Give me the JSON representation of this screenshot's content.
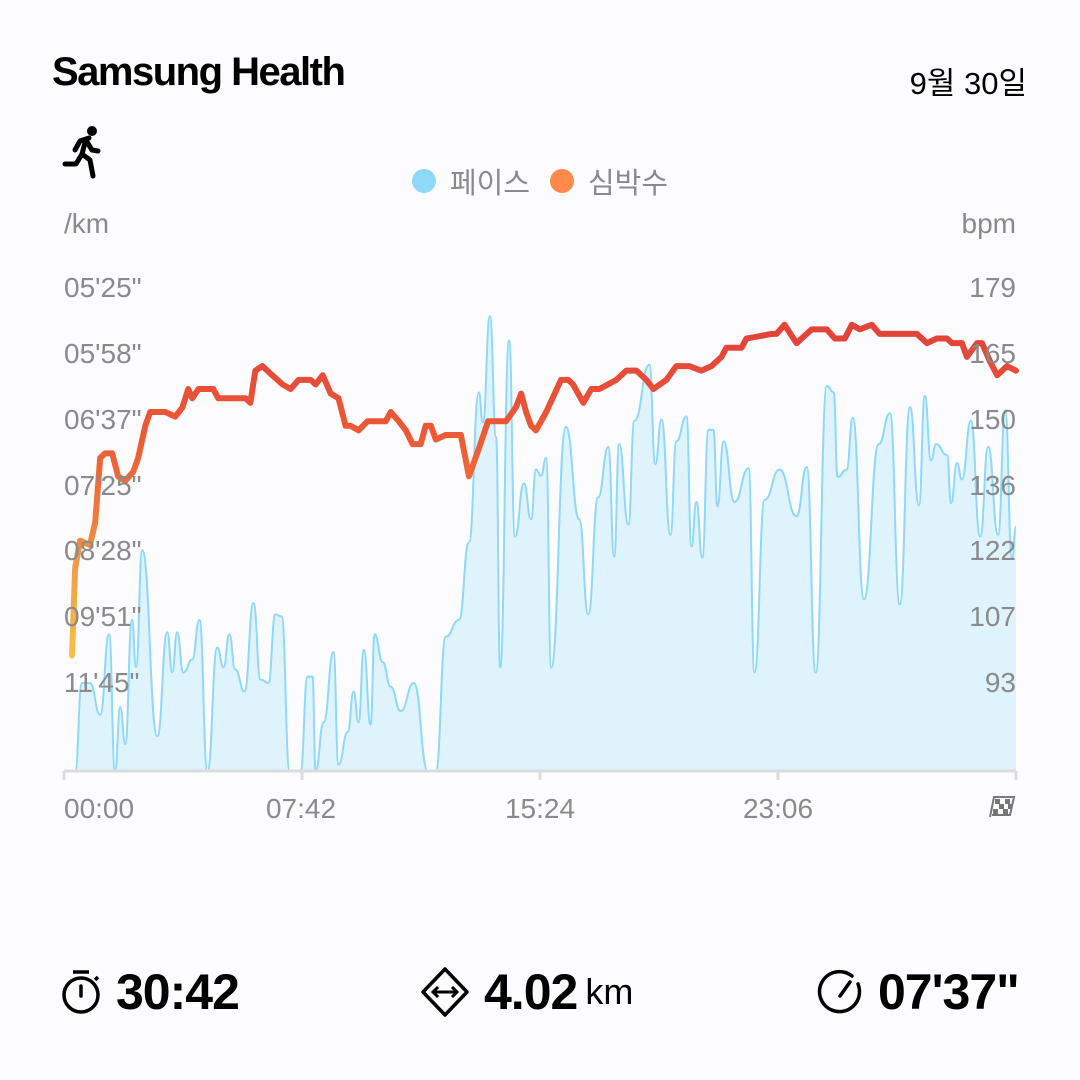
{
  "header": {
    "app_title": "Samsung Health",
    "date": "9월 30일",
    "activity_icon": "running-icon"
  },
  "legend": [
    {
      "label": "페이스",
      "color": "#8fd8f8"
    },
    {
      "label": "심박수",
      "color": "#ff8a4a"
    }
  ],
  "chart_data": {
    "type": "area+line",
    "left_axis": {
      "label": "/km",
      "ticks": [
        "05'25\"",
        "05'58\"",
        "06'37\"",
        "07'25\"",
        "08'28\"",
        "09'51\"",
        "11'45\""
      ],
      "scale": "reciprocal (speed-linear)"
    },
    "right_axis": {
      "label": "bpm",
      "ticks": [
        179,
        165,
        150,
        136,
        122,
        107,
        93
      ],
      "ylim": [
        93,
        179
      ]
    },
    "x_axis": {
      "ticks": [
        "00:00",
        "07:42",
        "15:24",
        "23:06"
      ],
      "end_icon": "checkered-flag-icon",
      "xlim_minutes": [
        0,
        30.8
      ]
    },
    "grid": false,
    "legend_position": "top-center",
    "series": [
      {
        "name": "페이스",
        "kind": "area",
        "color": "#8fd8f8",
        "fill": "#dff3fd",
        "unit": "sec/km",
        "points": [
          [
            0.36,
            960
          ],
          [
            0.58,
            705
          ],
          [
            0.84,
            705
          ],
          [
            1.17,
            778
          ],
          [
            1.46,
            616
          ],
          [
            1.65,
            960
          ],
          [
            1.82,
            759
          ],
          [
            1.98,
            861
          ],
          [
            2.2,
            594
          ],
          [
            2.33,
            673
          ],
          [
            2.53,
            506
          ],
          [
            3.02,
            837
          ],
          [
            3.34,
            613
          ],
          [
            3.5,
            684
          ],
          [
            3.66,
            613
          ],
          [
            3.86,
            684
          ],
          [
            4.15,
            659
          ],
          [
            4.38,
            594
          ],
          [
            4.64,
            960
          ],
          [
            4.96,
            638
          ],
          [
            5.16,
            674
          ],
          [
            5.35,
            616
          ],
          [
            5.54,
            678
          ],
          [
            5.84,
            723
          ],
          [
            6.13,
            570
          ],
          [
            6.36,
            698
          ],
          [
            6.61,
            705
          ],
          [
            6.84,
            586
          ],
          [
            7.04,
            589
          ],
          [
            7.3,
            960
          ],
          [
            7.65,
            960
          ],
          [
            7.88,
            692
          ],
          [
            8.04,
            692
          ],
          [
            8.14,
            960
          ],
          [
            8.4,
            798
          ],
          [
            8.72,
            646
          ],
          [
            8.88,
            930
          ],
          [
            9.18,
            824
          ],
          [
            9.37,
            723
          ],
          [
            9.53,
            798
          ],
          [
            9.7,
            642
          ],
          [
            9.92,
            804
          ],
          [
            10.05,
            616
          ],
          [
            10.31,
            664
          ],
          [
            10.57,
            713
          ],
          [
            10.89,
            769
          ],
          [
            11.32,
            705
          ],
          [
            11.77,
            960
          ],
          [
            12.03,
            960
          ],
          [
            12.35,
            620
          ],
          [
            12.78,
            594
          ],
          [
            13.1,
            498
          ],
          [
            13.42,
            379
          ],
          [
            13.55,
            398
          ],
          [
            13.78,
            338
          ],
          [
            13.98,
            408
          ],
          [
            14.11,
            674
          ],
          [
            14.4,
            350
          ],
          [
            14.59,
            492
          ],
          [
            14.88,
            443
          ],
          [
            15.11,
            475
          ],
          [
            15.27,
            432
          ],
          [
            15.43,
            437
          ],
          [
            15.6,
            423
          ],
          [
            15.76,
            674
          ],
          [
            16.24,
            401
          ],
          [
            16.67,
            475
          ],
          [
            16.96,
            586
          ],
          [
            17.28,
            455
          ],
          [
            17.61,
            415
          ],
          [
            17.8,
            513
          ],
          [
            17.96,
            413
          ],
          [
            18.26,
            480
          ],
          [
            18.45,
            397
          ],
          [
            18.94,
            363
          ],
          [
            19.13,
            428
          ],
          [
            19.33,
            396
          ],
          [
            19.62,
            490
          ],
          [
            19.81,
            411
          ],
          [
            20.14,
            394
          ],
          [
            20.3,
            502
          ],
          [
            20.46,
            459
          ],
          [
            20.65,
            514
          ],
          [
            20.85,
            403
          ],
          [
            21.01,
            403
          ],
          [
            21.14,
            463
          ],
          [
            21.34,
            411
          ],
          [
            21.69,
            459
          ],
          [
            22.15,
            431
          ],
          [
            22.34,
            684
          ],
          [
            22.67,
            457
          ],
          [
            23.15,
            432
          ],
          [
            23.7,
            472
          ],
          [
            24.03,
            430
          ],
          [
            24.32,
            684
          ],
          [
            24.68,
            375
          ],
          [
            24.9,
            379
          ],
          [
            25.03,
            438
          ],
          [
            25.32,
            432
          ],
          [
            25.52,
            395
          ],
          [
            25.88,
            565
          ],
          [
            26.36,
            413
          ],
          [
            26.72,
            392
          ],
          [
            27.04,
            572
          ],
          [
            27.37,
            388
          ],
          [
            27.66,
            462
          ],
          [
            27.85,
            381
          ],
          [
            28.05,
            425
          ],
          [
            28.21,
            413
          ],
          [
            28.57,
            421
          ],
          [
            28.7,
            460
          ],
          [
            28.89,
            427
          ],
          [
            29.05,
            440
          ],
          [
            29.34,
            397
          ],
          [
            29.64,
            492
          ],
          [
            29.9,
            415
          ],
          [
            30.22,
            490
          ],
          [
            30.45,
            390
          ],
          [
            30.67,
            516
          ],
          [
            30.8,
            482
          ]
        ]
      },
      {
        "name": "심박수",
        "kind": "line",
        "color": "#e5483a",
        "unit": "bpm",
        "points": [
          [
            0.26,
            99
          ],
          [
            0.36,
            118
          ],
          [
            0.52,
            124
          ],
          [
            0.84,
            123
          ],
          [
            1.01,
            128
          ],
          [
            1.17,
            142
          ],
          [
            1.33,
            143
          ],
          [
            1.56,
            143
          ],
          [
            1.75,
            138
          ],
          [
            1.98,
            137
          ],
          [
            2.24,
            139
          ],
          [
            2.4,
            142
          ],
          [
            2.63,
            149
          ],
          [
            2.79,
            152
          ],
          [
            2.95,
            152
          ],
          [
            3.28,
            152
          ],
          [
            3.6,
            151
          ],
          [
            3.83,
            153
          ],
          [
            4.02,
            157
          ],
          [
            4.15,
            155
          ],
          [
            4.35,
            157
          ],
          [
            4.83,
            157
          ],
          [
            4.99,
            155
          ],
          [
            5.32,
            155
          ],
          [
            5.87,
            155
          ],
          [
            6.03,
            154
          ],
          [
            6.19,
            161
          ],
          [
            6.42,
            162
          ],
          [
            6.74,
            160
          ],
          [
            7.07,
            158
          ],
          [
            7.33,
            157
          ],
          [
            7.59,
            159
          ],
          [
            7.98,
            159
          ],
          [
            8.14,
            158
          ],
          [
            8.37,
            160
          ],
          [
            8.63,
            156
          ],
          [
            8.88,
            155
          ],
          [
            9.11,
            149
          ],
          [
            9.27,
            149
          ],
          [
            9.53,
            148
          ],
          [
            9.82,
            150
          ],
          [
            10.08,
            150
          ],
          [
            10.41,
            150
          ],
          [
            10.57,
            152
          ],
          [
            10.83,
            150
          ],
          [
            11.06,
            148
          ],
          [
            11.28,
            145
          ],
          [
            11.54,
            145
          ],
          [
            11.7,
            149
          ],
          [
            11.87,
            149
          ],
          [
            12.03,
            146
          ],
          [
            12.35,
            147
          ],
          [
            12.68,
            147
          ],
          [
            12.84,
            147
          ],
          [
            13.1,
            138
          ],
          [
            13.42,
            144
          ],
          [
            13.72,
            150
          ],
          [
            13.98,
            150
          ],
          [
            14.3,
            150
          ],
          [
            14.62,
            153
          ],
          [
            14.79,
            156
          ],
          [
            14.95,
            152
          ],
          [
            15.11,
            149
          ],
          [
            15.27,
            148
          ],
          [
            15.6,
            152
          ],
          [
            16.08,
            159
          ],
          [
            16.31,
            159
          ],
          [
            16.47,
            158
          ],
          [
            16.8,
            154
          ],
          [
            17.06,
            157
          ],
          [
            17.32,
            157
          ],
          [
            17.87,
            159
          ],
          [
            18.19,
            161
          ],
          [
            18.52,
            161
          ],
          [
            18.84,
            159
          ],
          [
            19.07,
            157
          ],
          [
            19.49,
            159
          ],
          [
            19.81,
            162
          ],
          [
            20.23,
            162
          ],
          [
            20.62,
            161
          ],
          [
            20.95,
            162
          ],
          [
            21.27,
            164
          ],
          [
            21.43,
            166
          ],
          [
            21.92,
            166
          ],
          [
            22.08,
            168
          ],
          [
            22.89,
            169
          ],
          [
            23.05,
            169
          ],
          [
            23.31,
            171
          ],
          [
            23.7,
            167
          ],
          [
            24.19,
            170
          ],
          [
            24.68,
            170
          ],
          [
            24.94,
            168
          ],
          [
            25.26,
            168
          ],
          [
            25.49,
            171
          ],
          [
            25.75,
            170
          ],
          [
            26.13,
            171
          ],
          [
            26.39,
            169
          ],
          [
            26.78,
            169
          ],
          [
            27.11,
            169
          ],
          [
            27.59,
            169
          ],
          [
            27.76,
            168
          ],
          [
            27.92,
            167
          ],
          [
            28.24,
            168
          ],
          [
            28.57,
            168
          ],
          [
            28.73,
            167
          ],
          [
            29.05,
            167
          ],
          [
            29.21,
            164
          ],
          [
            29.54,
            167
          ],
          [
            29.7,
            167
          ],
          [
            29.96,
            163
          ],
          [
            30.19,
            160
          ],
          [
            30.51,
            162
          ],
          [
            30.8,
            161
          ]
        ]
      }
    ]
  },
  "stats": {
    "duration": {
      "icon": "stopwatch-icon",
      "value": "30:42"
    },
    "distance": {
      "icon": "distance-icon",
      "value": "4.02",
      "unit": "km"
    },
    "avg_pace": {
      "icon": "pace-gauge-icon",
      "value": "07'37\""
    }
  }
}
